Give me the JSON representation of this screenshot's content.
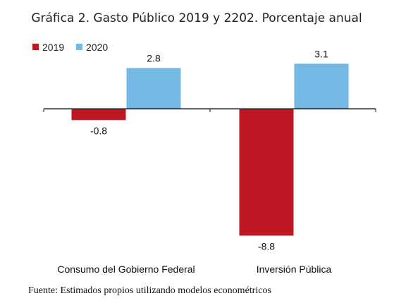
{
  "chart_data": {
    "type": "bar",
    "title": "Gráfica 2. Gasto Público 2019 y 2202. Porcentaje anual",
    "categories": [
      "Consumo del Gobierno Federal",
      "Inversión Pública"
    ],
    "series": [
      {
        "name": "2019",
        "color": "#BE1622",
        "values": [
          -0.8,
          -8.8
        ],
        "labels": [
          "-0.8",
          "-8.8"
        ]
      },
      {
        "name": "2020",
        "color": "#74B9E4",
        "values": [
          2.8,
          3.1
        ],
        "labels": [
          "2.8",
          "3.1"
        ]
      }
    ],
    "ylim": [
      -8.8,
      3.1
    ],
    "legend_position": "top-left",
    "grid": false,
    "xlabel": "",
    "ylabel": ""
  },
  "source_note": "Fuente: Estimados propios utilizando modelos econométricos"
}
